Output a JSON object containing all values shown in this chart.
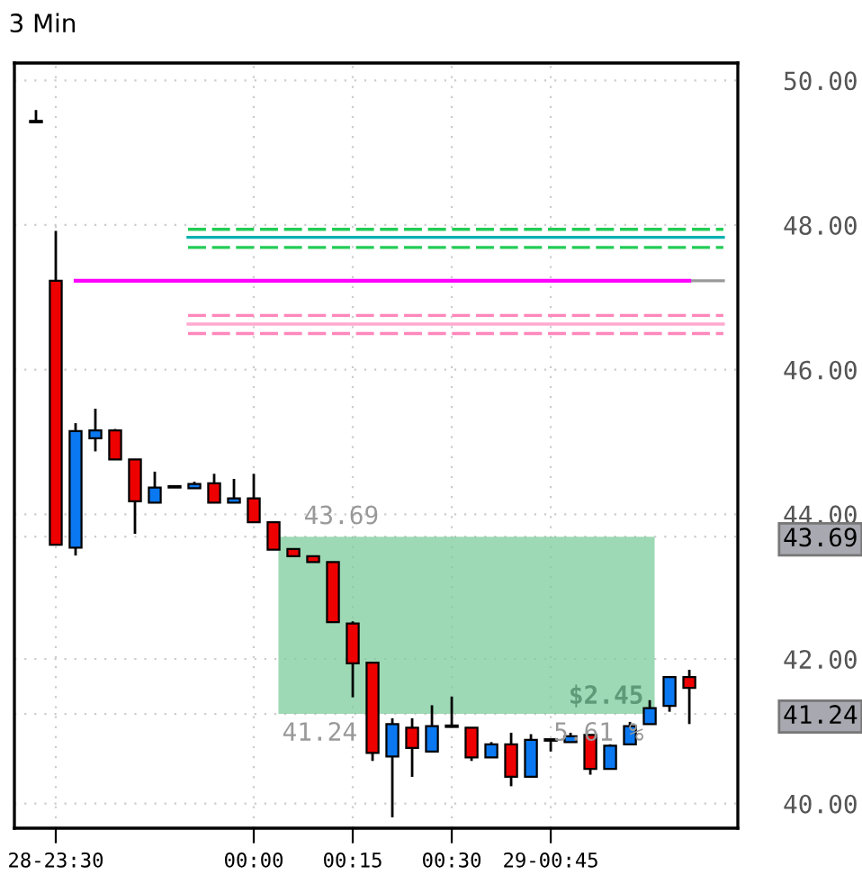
{
  "chart_data": {
    "type": "candlestick",
    "title": "3 Min",
    "categories": [
      null,
      "28-23:30",
      null,
      null,
      null,
      null,
      null,
      null,
      null,
      null,
      null,
      "00:00",
      null,
      null,
      null,
      null,
      "00:15",
      null,
      null,
      null,
      null,
      "00:30",
      null,
      null,
      null,
      null,
      "29-00:45",
      null,
      null,
      null,
      null,
      null,
      null,
      null
    ],
    "ohlc": [
      [
        49.43,
        49.59,
        49.42,
        49.42
      ],
      [
        47.23,
        47.92,
        43.58,
        43.58
      ],
      [
        43.54,
        45.26,
        43.43,
        45.15
      ],
      [
        45.05,
        45.46,
        44.87,
        45.16
      ],
      [
        45.16,
        45.18,
        44.76,
        44.76
      ],
      [
        44.76,
        44.76,
        43.73,
        44.18
      ],
      [
        44.16,
        44.59,
        44.16,
        44.37
      ],
      [
        44.37,
        44.39,
        44.37,
        44.39
      ],
      [
        44.36,
        44.45,
        44.36,
        44.42
      ],
      [
        44.43,
        44.56,
        44.16,
        44.16
      ],
      [
        44.16,
        44.49,
        44.16,
        44.22
      ],
      [
        44.22,
        44.56,
        43.89,
        43.89
      ],
      [
        43.89,
        43.89,
        43.51,
        43.51
      ],
      [
        43.52,
        43.52,
        43.42,
        43.42
      ],
      [
        43.42,
        43.42,
        43.34,
        43.34
      ],
      [
        43.34,
        43.34,
        42.51,
        42.51
      ],
      [
        42.49,
        42.52,
        41.47,
        41.94
      ],
      [
        41.95,
        41.95,
        40.59,
        40.7
      ],
      [
        40.65,
        41.18,
        39.81,
        41.1
      ],
      [
        41.05,
        41.18,
        40.37,
        40.77
      ],
      [
        40.72,
        41.36,
        40.72,
        41.07
      ],
      [
        41.07,
        41.48,
        41.06,
        41.06
      ],
      [
        41.05,
        41.05,
        40.59,
        40.64
      ],
      [
        40.64,
        40.85,
        40.64,
        40.82
      ],
      [
        40.82,
        40.98,
        40.24,
        40.37
      ],
      [
        40.37,
        40.96,
        40.37,
        40.88
      ],
      [
        40.88,
        40.88,
        40.72,
        40.87
      ],
      [
        40.85,
        40.98,
        40.85,
        40.93
      ],
      [
        40.95,
        40.95,
        40.4,
        40.48
      ],
      [
        40.48,
        40.82,
        40.48,
        40.8
      ],
      [
        40.82,
        41.13,
        40.82,
        41.07
      ],
      [
        41.1,
        41.43,
        41.1,
        41.32
      ],
      [
        41.35,
        41.75,
        41.27,
        41.75
      ],
      [
        41.75,
        41.85,
        41.1,
        41.6
      ]
    ],
    "series": [
      {
        "type": "line",
        "color": "#ff00ff",
        "values": [
          null,
          null,
          47.23,
          47.23,
          47.23,
          47.23,
          47.23,
          47.23,
          47.23,
          47.23,
          47.23,
          47.23,
          47.23,
          47.23,
          47.23,
          47.23,
          47.23,
          47.23,
          47.23,
          47.23,
          47.23,
          47.23,
          47.23,
          47.23,
          47.23,
          47.23,
          47.23,
          47.23,
          47.23,
          47.23,
          47.23,
          47.23,
          47.23,
          47.23
        ]
      }
    ],
    "ylim": [
      39.66,
      50.24
    ],
    "yticks": [
      {
        "value": 40,
        "label": "40.00"
      },
      {
        "value": 42,
        "label": "42.00"
      },
      {
        "value": 44,
        "label": "44.00"
      },
      {
        "value": 46,
        "label": "46.00"
      },
      {
        "value": 48,
        "label": "48.00"
      },
      {
        "value": 50,
        "label": "50.00"
      },
      {
        "value": 43.69,
        "label": "43.69"
      },
      {
        "value": 41.24,
        "label": "41.24"
      }
    ],
    "ref_lines": [
      {
        "axis": "y",
        "value": 47.94,
        "color": "#22cc55",
        "line_style": "dashed"
      },
      {
        "axis": "y",
        "value": 47.83,
        "color": "#00b0b0",
        "line_style": "solid"
      },
      {
        "axis": "y",
        "value": 47.69,
        "color": "#22cc55",
        "line_style": "dashed"
      },
      {
        "axis": "y",
        "value": 47.23,
        "color": "#999999",
        "line_style": "solid"
      },
      {
        "axis": "y",
        "value": 46.75,
        "color": "#ff88bb",
        "line_style": "dashed"
      },
      {
        "axis": "y",
        "value": 46.63,
        "color": "#ffaad0",
        "line_style": "solid"
      },
      {
        "axis": "y",
        "value": 46.5,
        "color": "#ff88bb",
        "line_style": "dashed"
      }
    ],
    "bands": [
      {
        "axis": "y",
        "from": 41.24,
        "to": 43.69,
        "color": "#7ccc9c"
      }
    ],
    "annotations": [
      {
        "text": "43.69",
        "y": 43.69
      },
      {
        "text": "41.24",
        "y": 41.24
      },
      {
        "text": "$2.45",
        "y": 41.24
      },
      {
        "text": "5.61 %",
        "y": 41.24
      }
    ],
    "grid": true
  }
}
